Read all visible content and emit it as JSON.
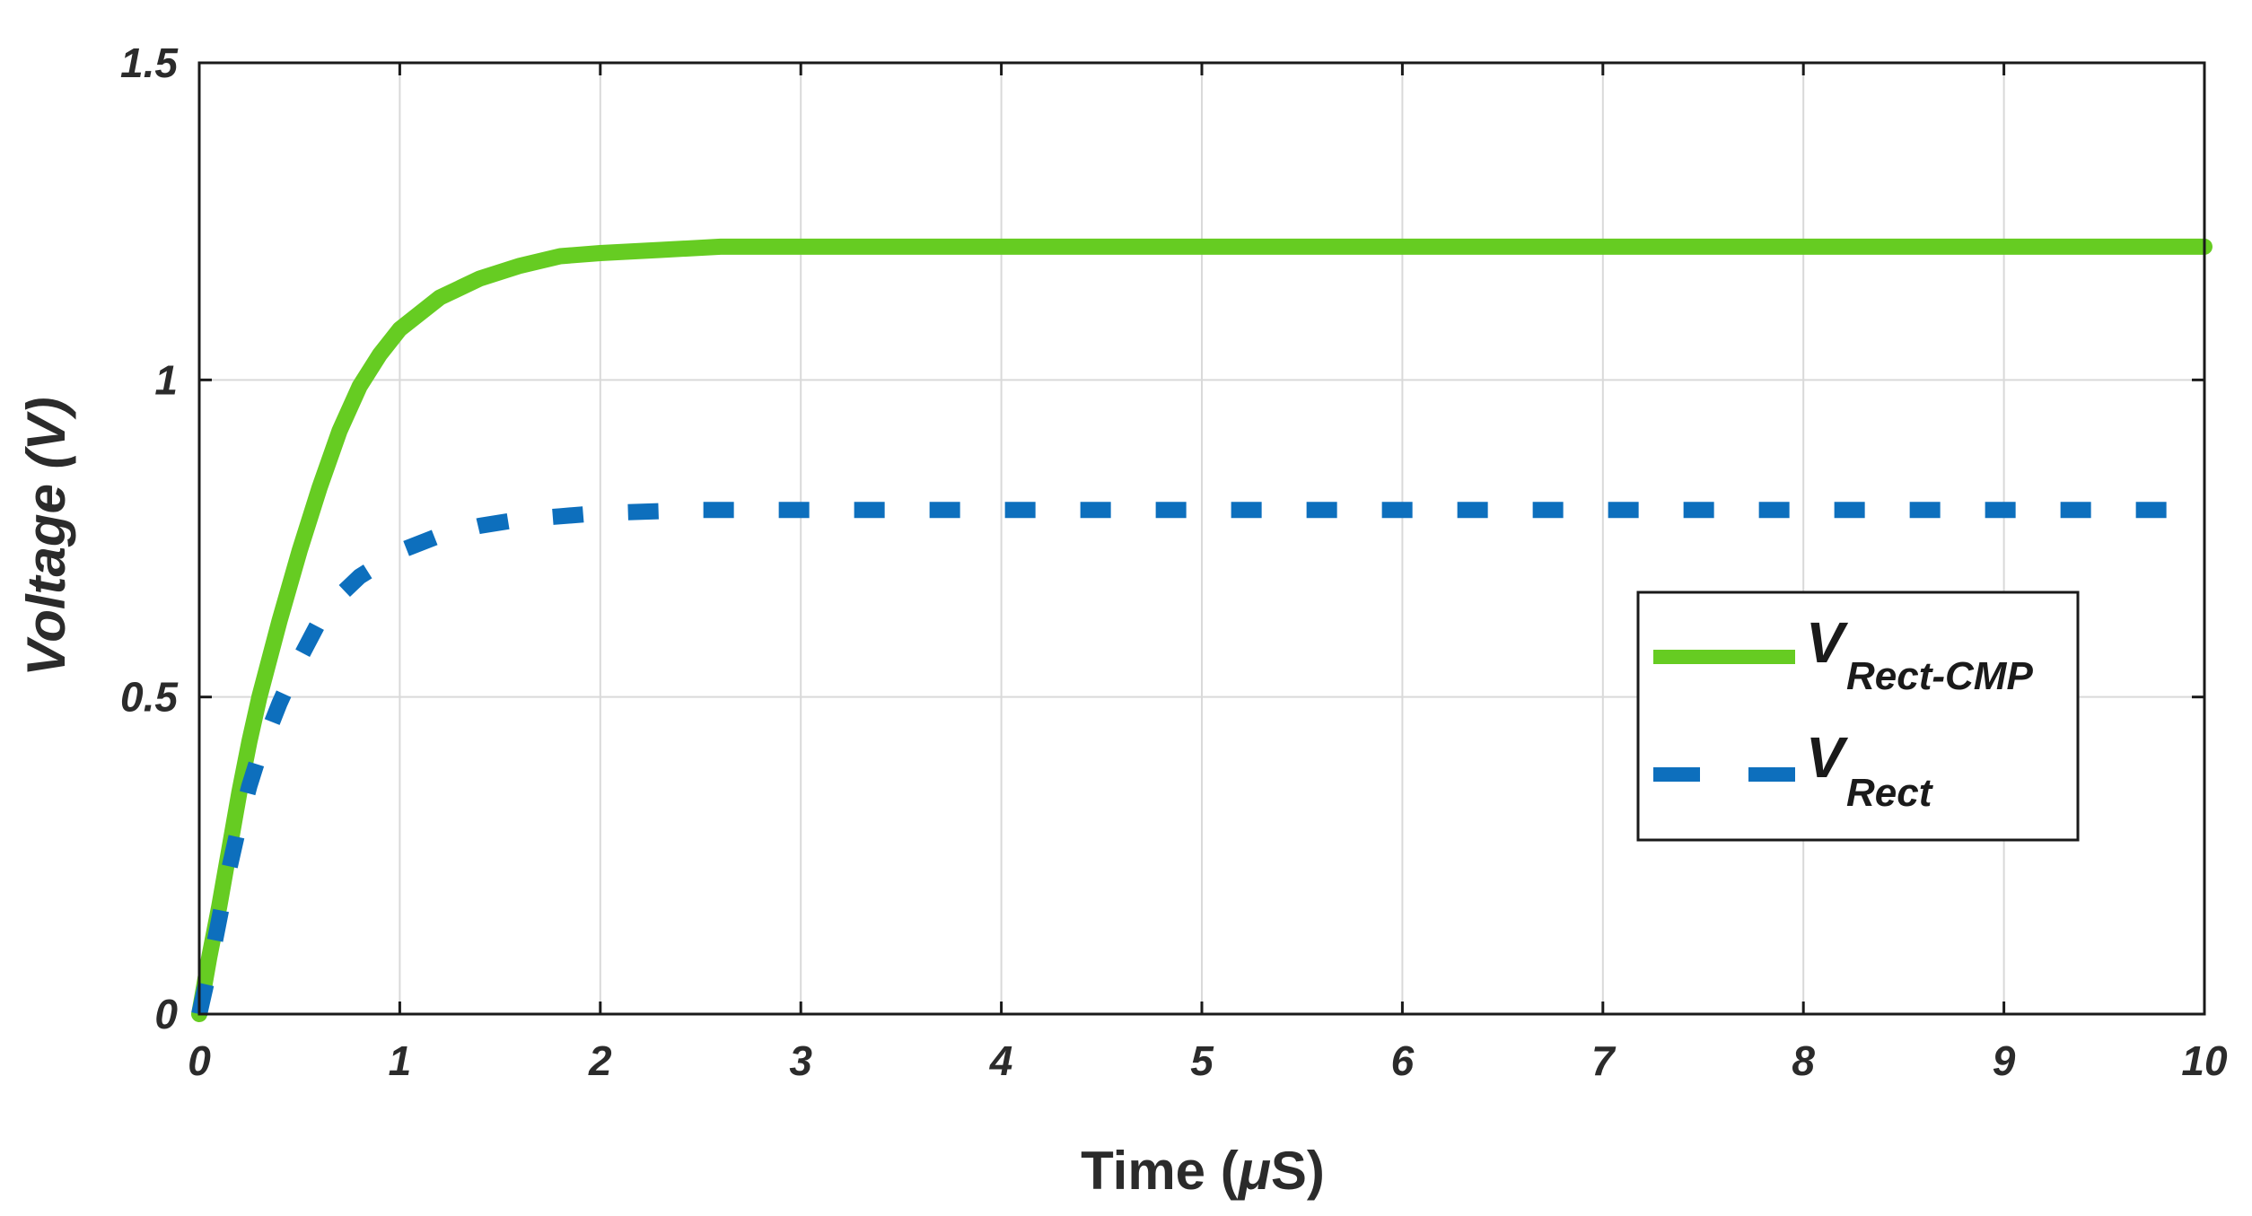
{
  "chart_data": {
    "type": "line",
    "xlabel_text": "Time (",
    "xlabel_symbol": "μ",
    "xlabel_unit": "S)",
    "ylabel": "Voltage (V)",
    "xlim": [
      0,
      10
    ],
    "ylim": [
      0,
      1.5
    ],
    "xticks": [
      "0",
      "1",
      "2",
      "3",
      "4",
      "5",
      "6",
      "7",
      "8",
      "9",
      "10"
    ],
    "yticks": [
      "0",
      "0.5",
      "1",
      "1.5"
    ],
    "grid": true,
    "legend_position": "right-middle",
    "series": [
      {
        "legend_main": "V",
        "legend_sub": "Rect-CMP",
        "color": "#66cc22",
        "style": "solid",
        "x": [
          0,
          0.05,
          0.1,
          0.15,
          0.2,
          0.25,
          0.3,
          0.4,
          0.5,
          0.6,
          0.7,
          0.8,
          0.9,
          1.0,
          1.2,
          1.4,
          1.6,
          1.8,
          2.0,
          2.3,
          2.6,
          3.0,
          4.0,
          5.0,
          6.0,
          7.0,
          8.0,
          9.0,
          10.0
        ],
        "y": [
          0.0,
          0.09,
          0.17,
          0.26,
          0.35,
          0.43,
          0.5,
          0.62,
          0.73,
          0.83,
          0.92,
          0.99,
          1.04,
          1.08,
          1.13,
          1.16,
          1.18,
          1.195,
          1.2,
          1.205,
          1.21,
          1.21,
          1.21,
          1.21,
          1.21,
          1.21,
          1.21,
          1.21,
          1.21
        ]
      },
      {
        "legend_main": "V",
        "legend_sub": "Rect",
        "color": "#0d6fbd",
        "style": "dashed",
        "x": [
          0,
          0.05,
          0.1,
          0.15,
          0.2,
          0.25,
          0.3,
          0.4,
          0.5,
          0.6,
          0.7,
          0.8,
          0.9,
          1.0,
          1.2,
          1.4,
          1.6,
          1.8,
          2.0,
          2.5,
          3.0,
          4.0,
          5.0,
          6.0,
          7.0,
          8.0,
          9.0,
          10.0
        ],
        "y": [
          0.0,
          0.07,
          0.15,
          0.23,
          0.3,
          0.36,
          0.41,
          0.49,
          0.56,
          0.62,
          0.66,
          0.69,
          0.71,
          0.73,
          0.755,
          0.77,
          0.78,
          0.785,
          0.79,
          0.795,
          0.795,
          0.795,
          0.795,
          0.795,
          0.795,
          0.795,
          0.795,
          0.795
        ]
      }
    ]
  }
}
